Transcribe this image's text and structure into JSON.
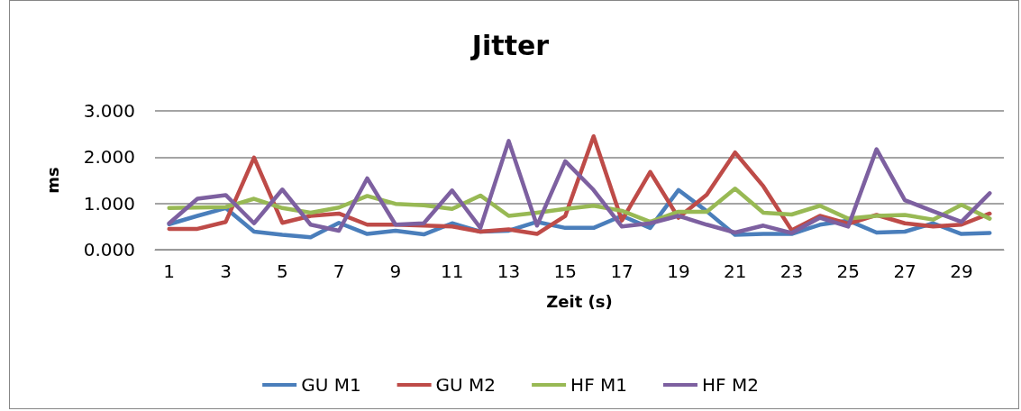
{
  "chart_data": {
    "type": "line",
    "title": "Jitter",
    "xlabel": "Zeit (s)",
    "ylabel": "ms",
    "x": [
      1,
      2,
      3,
      4,
      5,
      6,
      7,
      8,
      9,
      10,
      11,
      12,
      13,
      14,
      15,
      16,
      17,
      18,
      19,
      20,
      21,
      22,
      23,
      24,
      25,
      26,
      27,
      28,
      29,
      30
    ],
    "xlim": [
      0.5,
      30.5
    ],
    "xticks": [
      1,
      3,
      5,
      7,
      9,
      11,
      13,
      15,
      17,
      19,
      21,
      23,
      25,
      27,
      29
    ],
    "series": [
      {
        "name": "GU M1",
        "color": "#4a7ebb",
        "values": [
          0.55,
          0.73,
          0.9,
          0.39,
          0.32,
          0.27,
          0.58,
          0.34,
          0.41,
          0.33,
          0.57,
          0.39,
          0.41,
          0.6,
          0.47,
          0.47,
          0.73,
          0.47,
          1.29,
          0.83,
          0.32,
          0.34,
          0.34,
          0.54,
          0.63,
          0.37,
          0.39,
          0.57,
          0.34,
          0.36
        ]
      },
      {
        "name": "GU M2",
        "color": "#be4b48",
        "values": [
          0.45,
          0.45,
          0.6,
          1.99,
          0.58,
          0.73,
          0.78,
          0.54,
          0.54,
          0.52,
          0.5,
          0.39,
          0.44,
          0.34,
          0.73,
          2.45,
          0.63,
          1.68,
          0.69,
          1.19,
          2.1,
          1.37,
          0.42,
          0.73,
          0.56,
          0.75,
          0.57,
          0.5,
          0.54,
          0.78
        ]
      },
      {
        "name": "HF M1",
        "color": "#98b954",
        "values": [
          0.9,
          0.91,
          0.92,
          1.1,
          0.9,
          0.8,
          0.91,
          1.16,
          0.99,
          0.96,
          0.88,
          1.17,
          0.73,
          0.8,
          0.88,
          0.95,
          0.84,
          0.6,
          0.82,
          0.82,
          1.32,
          0.8,
          0.76,
          0.95,
          0.67,
          0.73,
          0.75,
          0.65,
          0.97,
          0.67
        ]
      },
      {
        "name": "HF M2",
        "color": "#7d60a0",
        "values": [
          0.57,
          1.1,
          1.18,
          0.57,
          1.3,
          0.54,
          0.41,
          1.54,
          0.54,
          0.57,
          1.28,
          0.47,
          2.35,
          0.52,
          1.91,
          1.29,
          0.5,
          0.57,
          0.73,
          0.54,
          0.37,
          0.52,
          0.36,
          0.69,
          0.5,
          2.17,
          1.07,
          0.83,
          0.6,
          1.22
        ]
      }
    ],
    "ylim": [
      0,
      3
    ],
    "yticks": [
      {
        "value": 0,
        "label": "0.000"
      },
      {
        "value": 1,
        "label": "1.000"
      },
      {
        "value": 2,
        "label": "2.000"
      },
      {
        "value": 3,
        "label": "3.000"
      }
    ],
    "grid": "y",
    "legend": "bottom",
    "marker": "none",
    "line_style": "solid"
  }
}
